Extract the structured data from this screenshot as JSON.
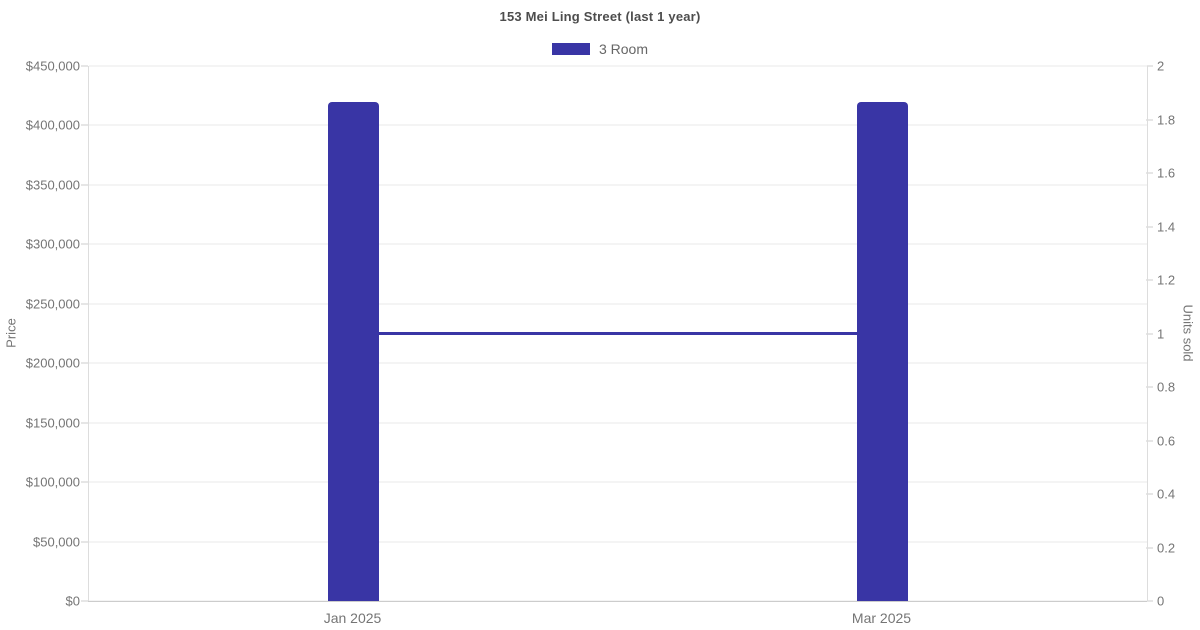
{
  "title": "153 Mei Ling Street (last 1 year)",
  "legend": [
    {
      "label": "3 Room",
      "color": "#3935a5"
    }
  ],
  "colors": {
    "accent": "#3935a5",
    "gridline": "#e8e8e8",
    "axis_line": "#cccccc",
    "plot_border": "#dddddd",
    "tick_text": "#757575",
    "title_text": "#4d4d4d"
  },
  "chart_data": {
    "type": "bar",
    "title": "153 Mei Ling Street (last 1 year)",
    "categories": [
      "Jan 2025",
      "Mar 2025"
    ],
    "series": [
      {
        "name": "3 Room",
        "type": "bar",
        "axis": "price",
        "values": [
          420000,
          420000
        ],
        "color": "#3935a5"
      },
      {
        "name": "3 Room",
        "type": "line",
        "axis": "units_sold",
        "values": [
          1,
          1
        ],
        "color": "#3935a5"
      }
    ],
    "left_axis": {
      "label": "Price",
      "min": 0,
      "max": 450000,
      "tick_labels": [
        "$450,000",
        "$400,000",
        "$350,000",
        "$300,000",
        "$250,000",
        "$200,000",
        "$150,000",
        "$100,000",
        "$50,000",
        "$0"
      ]
    },
    "right_axis": {
      "label": "Units sold",
      "min": 0,
      "max": 2,
      "tick_labels": [
        "2",
        "1.8",
        "1.6",
        "1.4",
        "1.2",
        "1",
        "0.8",
        "0.6",
        "0.4",
        "0.2",
        "0"
      ]
    },
    "grid": "horizontal-only",
    "legend_position": "top-center",
    "line_spans_bar_centers": true
  }
}
